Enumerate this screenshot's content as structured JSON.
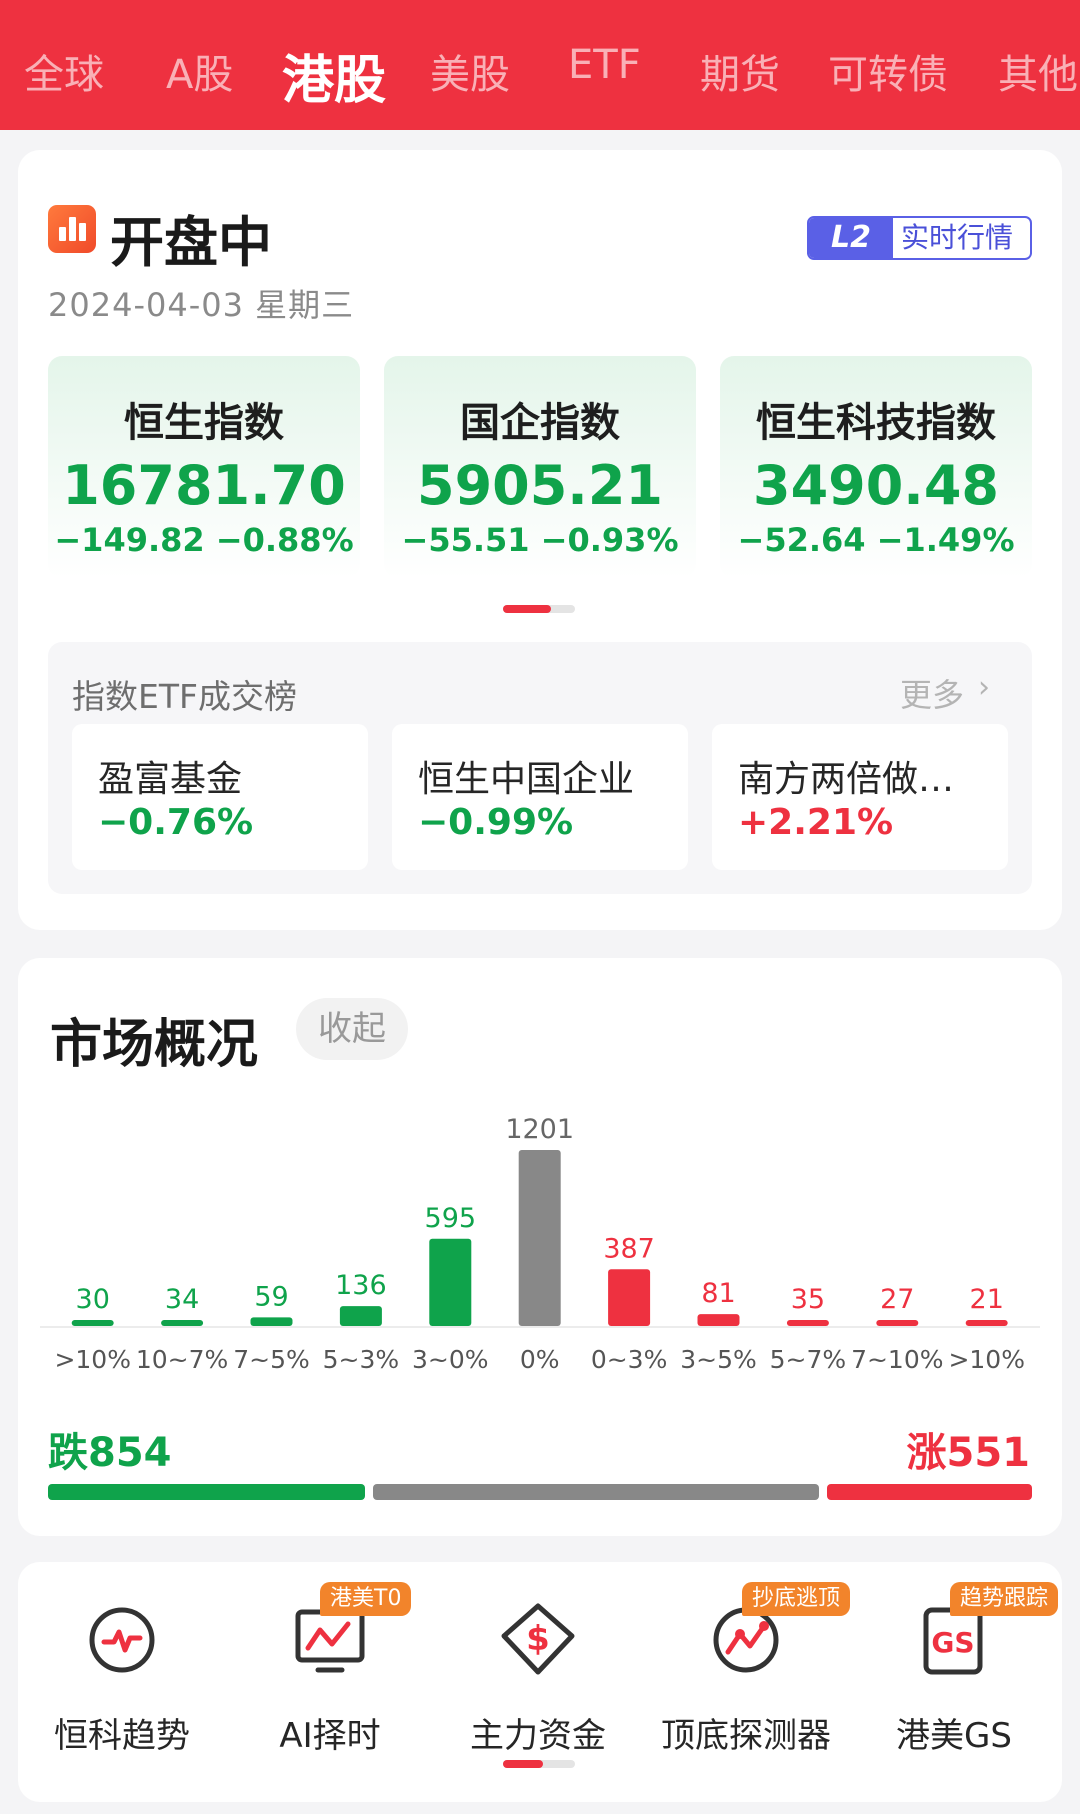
{
  "tabs": [
    {
      "label": "全球",
      "active": false
    },
    {
      "label": "A股",
      "active": false
    },
    {
      "label": "港股",
      "active": true
    },
    {
      "label": "美股",
      "active": false
    },
    {
      "label": "ETF",
      "active": false
    },
    {
      "label": "期货",
      "active": false
    },
    {
      "label": "可转债",
      "active": false
    },
    {
      "label": "其他",
      "active": false
    }
  ],
  "status": {
    "icon": "candlestick-icon",
    "title": "开盘中",
    "date": "2024-04-03 星期三",
    "badge_l2": "L2",
    "badge_text": "实时行情"
  },
  "indices": [
    {
      "name": "恒生指数",
      "value": "16781.70",
      "change": "−149.82 −0.88%"
    },
    {
      "name": "国企指数",
      "value": "5905.21",
      "change": "−55.51 −0.93%"
    },
    {
      "name": "恒生科技指数",
      "value": "3490.48",
      "change": "−52.64 −1.49%"
    }
  ],
  "etf": {
    "title": "指数ETF成交榜",
    "more": "更多",
    "items": [
      {
        "name": "盈富基金",
        "pct": "−0.76%",
        "direction": "down"
      },
      {
        "name": "恒生中国企业",
        "pct": "−0.99%",
        "direction": "down"
      },
      {
        "name": "南方两倍做…",
        "pct": "+2.21%",
        "direction": "up"
      }
    ]
  },
  "market": {
    "title": "市场概况",
    "collapse": "收起",
    "down_label": "跌854",
    "up_label": "涨551",
    "breadth": {
      "down": 854,
      "flat": 1201,
      "up": 551
    }
  },
  "chart_data": {
    "type": "bar",
    "categories": [
      ">10%",
      "10~7%",
      "7~5%",
      "5~3%",
      "3~0%",
      "0%",
      "0~3%",
      "3~5%",
      "5~7%",
      "7~10%",
      ">10%"
    ],
    "values": [
      30,
      34,
      59,
      136,
      595,
      1201,
      387,
      81,
      35,
      27,
      21
    ],
    "colors": [
      "#0fa34b",
      "#0fa34b",
      "#0fa34b",
      "#0fa34b",
      "#0fa34b",
      "#888888",
      "#ee3140",
      "#ee3140",
      "#ee3140",
      "#ee3140",
      "#ee3140"
    ]
  },
  "tools": [
    {
      "label": "恒科趋势",
      "icon": "trend-pulse-icon",
      "tag": ""
    },
    {
      "label": "AI择时",
      "icon": "ai-chart-icon",
      "tag": "港美T0"
    },
    {
      "label": "主力资金",
      "icon": "money-diamond-icon",
      "tag": ""
    },
    {
      "label": "顶底探测器",
      "icon": "detector-icon",
      "tag": "抄底逃顶"
    },
    {
      "label": "港美GS",
      "icon": "gs-badge-icon",
      "tag": "趋势跟踪"
    }
  ],
  "colors": {
    "accent": "#ee3140",
    "down": "#0fa34b",
    "flat": "#888888",
    "badge": "#5a60e6",
    "tag": "#f2842b"
  }
}
